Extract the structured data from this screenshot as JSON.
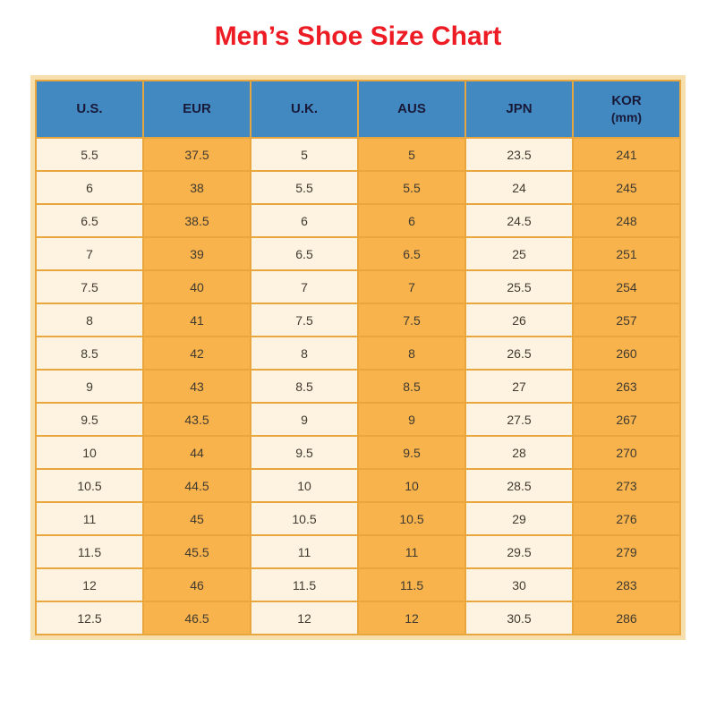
{
  "title": "Men’s Shoe Size Chart",
  "colors": {
    "title": "#ed1c24",
    "header_bg": "#4289c2",
    "header_text": "#191938",
    "column_light": "#fdf3e0",
    "column_orange": "#f8b34c",
    "cell_border": "#e9a63e",
    "outer_border": "#f7dfad",
    "cell_text": "#403a30"
  },
  "chart_data": {
    "type": "table",
    "title": "Men’s Shoe Size Chart",
    "headers": [
      {
        "label": "U.S."
      },
      {
        "label": "EUR"
      },
      {
        "label": "U.K."
      },
      {
        "label": "AUS"
      },
      {
        "label": "JPN"
      },
      {
        "label": "KOR",
        "sub": "(mm)"
      }
    ],
    "rows": [
      [
        "5.5",
        "37.5",
        "5",
        "5",
        "23.5",
        "241"
      ],
      [
        "6",
        "38",
        "5.5",
        "5.5",
        "24",
        "245"
      ],
      [
        "6.5",
        "38.5",
        "6",
        "6",
        "24.5",
        "248"
      ],
      [
        "7",
        "39",
        "6.5",
        "6.5",
        "25",
        "251"
      ],
      [
        "7.5",
        "40",
        "7",
        "7",
        "25.5",
        "254"
      ],
      [
        "8",
        "41",
        "7.5",
        "7.5",
        "26",
        "257"
      ],
      [
        "8.5",
        "42",
        "8",
        "8",
        "26.5",
        "260"
      ],
      [
        "9",
        "43",
        "8.5",
        "8.5",
        "27",
        "263"
      ],
      [
        "9.5",
        "43.5",
        "9",
        "9",
        "27.5",
        "267"
      ],
      [
        "10",
        "44",
        "9.5",
        "9.5",
        "28",
        "270"
      ],
      [
        "10.5",
        "44.5",
        "10",
        "10",
        "28.5",
        "273"
      ],
      [
        "11",
        "45",
        "10.5",
        "10.5",
        "29",
        "276"
      ],
      [
        "11.5",
        "45.5",
        "11",
        "11",
        "29.5",
        "279"
      ],
      [
        "12",
        "46",
        "11.5",
        "11.5",
        "30",
        "283"
      ],
      [
        "12.5",
        "46.5",
        "12",
        "12",
        "30.5",
        "286"
      ]
    ]
  }
}
